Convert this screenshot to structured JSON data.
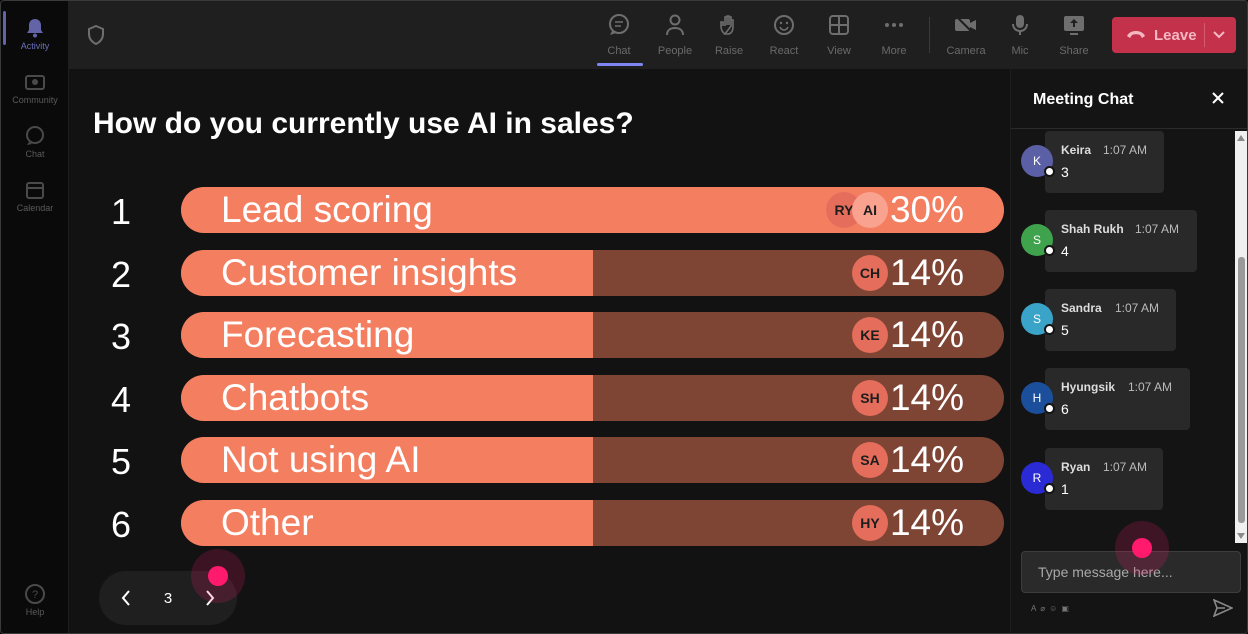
{
  "rail": {
    "items": [
      {
        "label": "Activity",
        "icon": "bell-icon",
        "active": true
      },
      {
        "label": "Community",
        "icon": "community-icon",
        "active": false
      },
      {
        "label": "Chat",
        "icon": "chat-icon",
        "active": false
      },
      {
        "label": "Calendar",
        "icon": "calendar-icon",
        "active": false
      }
    ],
    "help_label": "Help"
  },
  "toolbar": {
    "buttons": [
      {
        "label": "Chat",
        "icon": "chat-icon"
      },
      {
        "label": "People",
        "icon": "people-icon"
      },
      {
        "label": "Raise",
        "icon": "raise-hand-icon"
      },
      {
        "label": "React",
        "icon": "react-icon"
      },
      {
        "label": "View",
        "icon": "view-grid-icon"
      },
      {
        "label": "More",
        "icon": "more-icon"
      },
      {
        "label": "Camera",
        "icon": "camera-off-icon"
      },
      {
        "label": "Mic",
        "icon": "mic-icon"
      },
      {
        "label": "Share",
        "icon": "share-icon"
      }
    ],
    "leave_label": "Leave",
    "leave_color": "#c4314b"
  },
  "poll": {
    "question": "How do you currently use AI in sales?",
    "options": [
      {
        "num": "1",
        "label": "Lead scoring",
        "percent": "30%",
        "fraction": 0.3,
        "avatars": [
          "RY",
          "AI"
        ]
      },
      {
        "num": "2",
        "label": "Customer insights",
        "percent": "14%",
        "fraction": 0.14,
        "avatars": [
          "CH"
        ]
      },
      {
        "num": "3",
        "label": "Forecasting",
        "percent": "14%",
        "fraction": 0.14,
        "avatars": [
          "KE"
        ]
      },
      {
        "num": "4",
        "label": "Chatbots",
        "percent": "14%",
        "fraction": 0.14,
        "avatars": [
          "SH"
        ]
      },
      {
        "num": "5",
        "label": "Not using AI",
        "percent": "14%",
        "fraction": 0.14,
        "avatars": [
          "SA"
        ]
      },
      {
        "num": "6",
        "label": "Other",
        "percent": "14%",
        "fraction": 0.14,
        "avatars": [
          "HY"
        ]
      }
    ],
    "bar_fill_color": "#f47e60",
    "bar_track_color": "#7e4535"
  },
  "pager": {
    "page": "3"
  },
  "chat": {
    "title": "Meeting Chat",
    "messages": [
      {
        "initial": "K",
        "name": "Keira",
        "time": "1:07 AM",
        "text": "3",
        "color": "#5b5fa5"
      },
      {
        "initial": "S",
        "name": "Shah Rukh",
        "time": "1:07 AM",
        "text": "4",
        "color": "#3fa34d"
      },
      {
        "initial": "S",
        "name": "Sandra",
        "time": "1:07 AM",
        "text": "5",
        "color": "#3aa3c8"
      },
      {
        "initial": "H",
        "name": "Hyungsik",
        "time": "1:07 AM",
        "text": "6",
        "color": "#1b4f9c"
      },
      {
        "initial": "R",
        "name": "Ryan",
        "time": "1:07 AM",
        "text": "1",
        "color": "#2b2bd6"
      }
    ],
    "compose_placeholder": "Type message here..."
  }
}
